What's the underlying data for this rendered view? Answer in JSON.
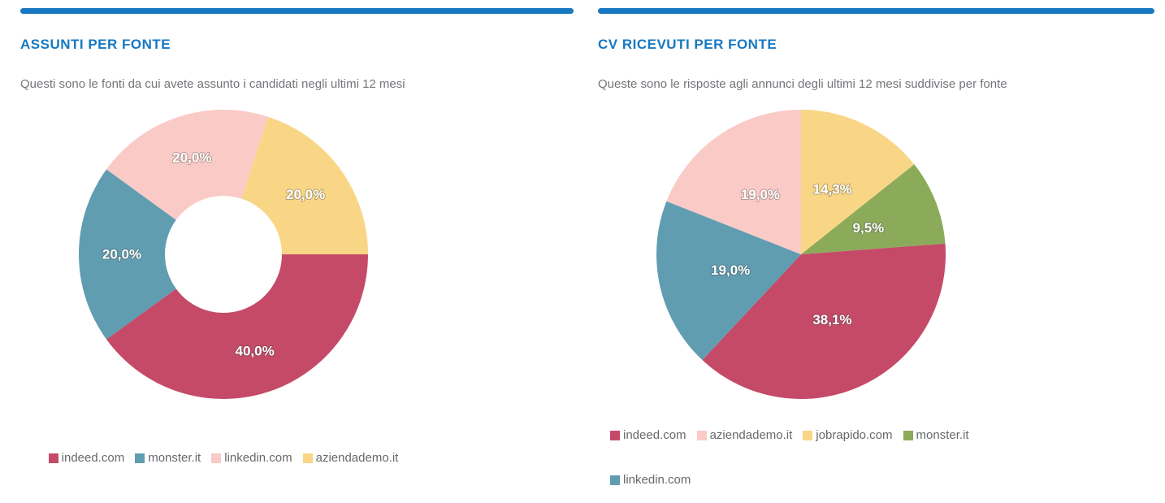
{
  "accent_color": "#1778c1",
  "chart_data": [
    {
      "type": "pie",
      "variant": "donut",
      "title": "ASSUNTI PER FONTE",
      "subtitle": "Questi sono le fonti da cui avete assunto i candidati negli ultimi 12 mesi",
      "donut": true,
      "inner_radius_ratio": 0.405,
      "start_angle_deg": 90,
      "slices": [
        {
          "label": "indeed.com",
          "value": 40.0,
          "display": "40,0%",
          "color": "#c54a68"
        },
        {
          "label": "monster.it",
          "value": 20.0,
          "display": "20,0%",
          "color": "#609db1"
        },
        {
          "label": "linkedin.com",
          "value": 20.0,
          "display": "20,0%",
          "color": "#facac6"
        },
        {
          "label": "aziendademo.it",
          "value": 20.0,
          "display": "20,0%",
          "color": "#f9d686"
        }
      ],
      "legend_order": [
        "indeed.com",
        "monster.it",
        "linkedin.com",
        "aziendademo.it"
      ]
    },
    {
      "type": "pie",
      "variant": "pie",
      "title": "CV RICEVUTI PER FONTE",
      "subtitle": "Queste sono le risposte agli annunci degli ultimi 12 mesi suddivise per fonte",
      "donut": false,
      "inner_radius_ratio": 0,
      "start_angle_deg": 0,
      "slices": [
        {
          "label": "jobrapido.com",
          "value": 14.3,
          "display": "14,3%",
          "color": "#f9d686"
        },
        {
          "label": "monster.it",
          "value": 9.5,
          "display": "9,5%",
          "color": "#8bab5a"
        },
        {
          "label": "indeed.com",
          "value": 38.1,
          "display": "38,1%",
          "color": "#c54a68"
        },
        {
          "label": "linkedin.com",
          "value": 19.0,
          "display": "19,0%",
          "color": "#609db1"
        },
        {
          "label": "aziendademo.it",
          "value": 19.0,
          "display": "19,0%",
          "color": "#facac6"
        }
      ],
      "legend_order": [
        "indeed.com",
        "aziendademo.it",
        "jobrapido.com",
        "monster.it",
        "linkedin.com"
      ]
    }
  ]
}
